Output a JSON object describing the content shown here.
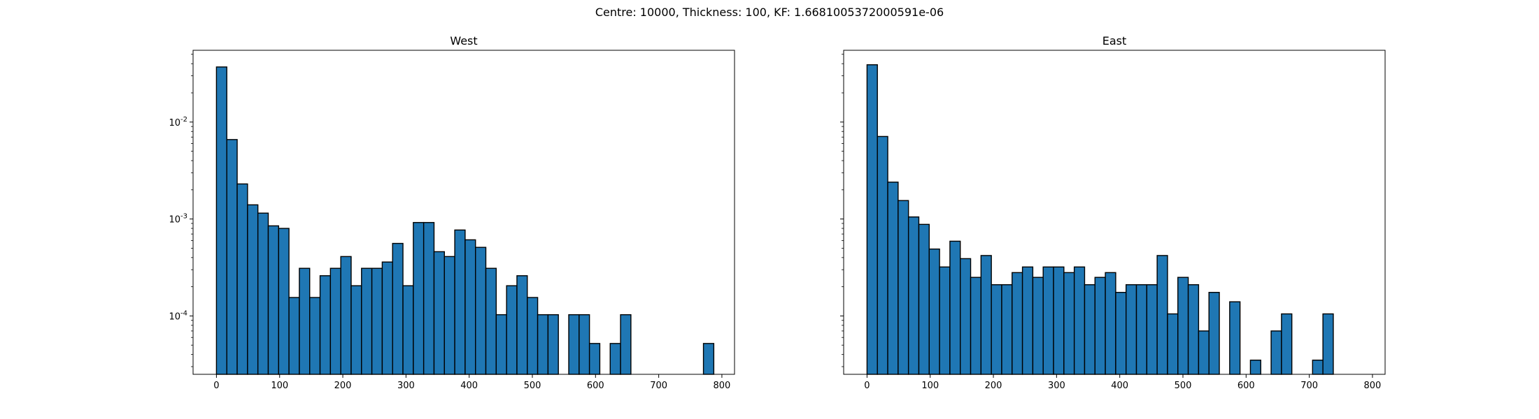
{
  "figure": {
    "suptitle": "Centre: 10000, Thickness: 100, KF: 1.6681005372000591e-06"
  },
  "chart_data": [
    {
      "type": "bar",
      "subtype": "histogram",
      "title": "West",
      "xlabel": "",
      "ylabel": "",
      "yscale": "log",
      "bar_color": "#1f77b4",
      "edge_color": "#000000",
      "bin_start": 0,
      "bin_width": 16.4,
      "xlim": [
        -37,
        820
      ],
      "ylim": [
        2.5e-05,
        0.055
      ],
      "xticks": [
        0,
        100,
        200,
        300,
        400,
        500,
        600,
        700,
        800
      ],
      "xtick_labels": [
        "0",
        "100",
        "200",
        "300",
        "400",
        "500",
        "600",
        "700",
        "800"
      ],
      "yticks": [
        0.0001,
        0.001,
        0.01
      ],
      "ytick_labels": [
        "10^-4",
        "10^-3",
        "10^-2"
      ],
      "values": [
        0.037,
        0.0066,
        0.0023,
        0.0014,
        0.00115,
        0.00085,
        0.0008,
        0.000155,
        0.00031,
        0.000155,
        0.00026,
        0.00031,
        0.00041,
        0.000205,
        0.00031,
        0.00031,
        0.00036,
        0.00056,
        0.000205,
        0.00092,
        0.00092,
        0.00046,
        0.00041,
        0.00077,
        0.00061,
        0.00051,
        0.00031,
        0.000103,
        0.000205,
        0.00026,
        0.000155,
        0.000103,
        0.000103,
        0,
        0.000103,
        0.000103,
        5.2e-05,
        0,
        5.2e-05,
        0.000103,
        0,
        0,
        0,
        0,
        0,
        0,
        0,
        5.2e-05
      ]
    },
    {
      "type": "bar",
      "subtype": "histogram",
      "title": "East",
      "xlabel": "",
      "ylabel": "",
      "yscale": "log",
      "bar_color": "#1f77b4",
      "edge_color": "#000000",
      "bin_start": 0,
      "bin_width": 16.4,
      "xlim": [
        -37,
        820
      ],
      "ylim": [
        2.5e-05,
        0.055
      ],
      "xticks": [
        0,
        100,
        200,
        300,
        400,
        500,
        600,
        700,
        800
      ],
      "xtick_labels": [
        "0",
        "100",
        "200",
        "300",
        "400",
        "500",
        "600",
        "700",
        "800"
      ],
      "yticks": [
        0.0001,
        0.001,
        0.01
      ],
      "ytick_labels": [],
      "values": [
        0.039,
        0.0071,
        0.0024,
        0.00155,
        0.00105,
        0.00088,
        0.00049,
        0.00032,
        0.00059,
        0.00039,
        0.00025,
        0.00042,
        0.00021,
        0.00021,
        0.00028,
        0.00032,
        0.00025,
        0.00032,
        0.00032,
        0.00028,
        0.00032,
        0.00021,
        0.00025,
        0.00028,
        0.000175,
        0.00021,
        0.00021,
        0.00021,
        0.00042,
        0.000105,
        0.00025,
        0.00021,
        7e-05,
        0.000175,
        0,
        0.00014,
        0,
        3.5e-05,
        0,
        7e-05,
        0.000105,
        0,
        0,
        3.5e-05,
        0.000105,
        0,
        0,
        0,
        0
      ]
    }
  ]
}
